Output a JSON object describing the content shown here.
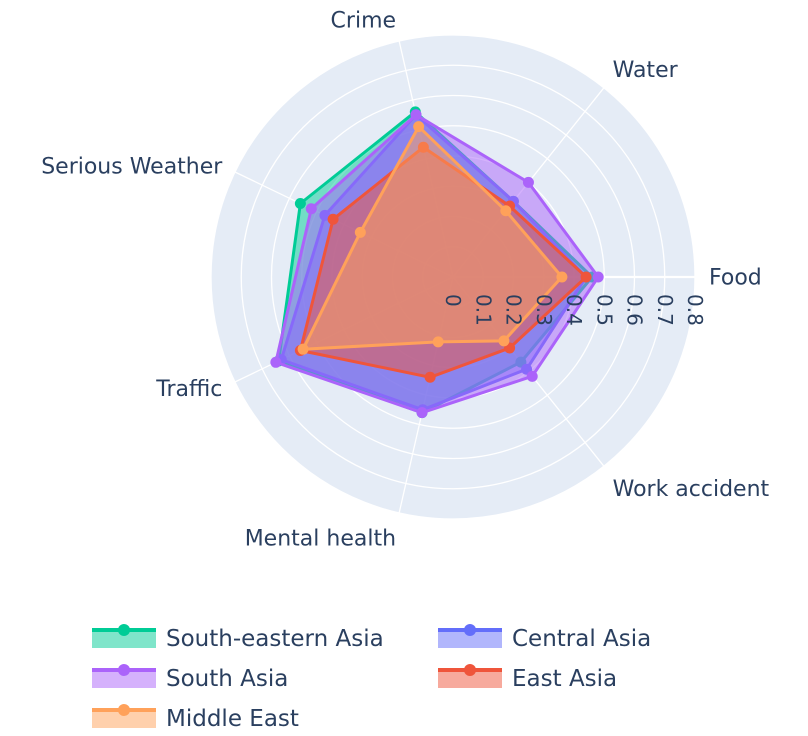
{
  "chart_data": {
    "type": "radar",
    "axes": [
      "Food",
      "Water",
      "Crime",
      "Serious Weather",
      "Traffic",
      "Mental health",
      "Work accident"
    ],
    "radial_range": [
      0,
      0.8
    ],
    "radial_ticks": [
      "0",
      "0.1",
      "0.2",
      "0.3",
      "0.4",
      "0.5",
      "0.6",
      "0.7",
      "0.8"
    ],
    "legend_position": "bottom",
    "series": [
      {
        "name": "South-eastern Asia",
        "color": "#00cc96",
        "values": [
          0.46,
          0.32,
          0.56,
          0.56,
          0.64,
          0.46,
          0.36
        ]
      },
      {
        "name": "Central Asia",
        "color": "#636efa",
        "values": [
          0.44,
          0.32,
          0.55,
          0.47,
          0.63,
          0.45,
          0.39
        ]
      },
      {
        "name": "South Asia",
        "color": "#ab63fa",
        "values": [
          0.48,
          0.4,
          0.55,
          0.52,
          0.65,
          0.46,
          0.42
        ]
      },
      {
        "name": "East Asia",
        "color": "#ef553b",
        "values": [
          0.44,
          0.3,
          0.44,
          0.44,
          0.56,
          0.34,
          0.3
        ]
      },
      {
        "name": "Middle East",
        "color": "#ffa15a",
        "values": [
          0.36,
          0.28,
          0.51,
          0.34,
          0.55,
          0.22,
          0.27
        ]
      }
    ],
    "legend": [
      {
        "name": "South-eastern Asia",
        "color": "#00cc96",
        "col": 0,
        "row": 0
      },
      {
        "name": "Central Asia",
        "color": "#636efa",
        "col": 1,
        "row": 0
      },
      {
        "name": "South Asia",
        "color": "#ab63fa",
        "col": 0,
        "row": 1
      },
      {
        "name": "East Asia",
        "color": "#ef553b",
        "col": 1,
        "row": 1
      },
      {
        "name": "Middle East",
        "color": "#ffa15a",
        "col": 0,
        "row": 2
      }
    ]
  }
}
